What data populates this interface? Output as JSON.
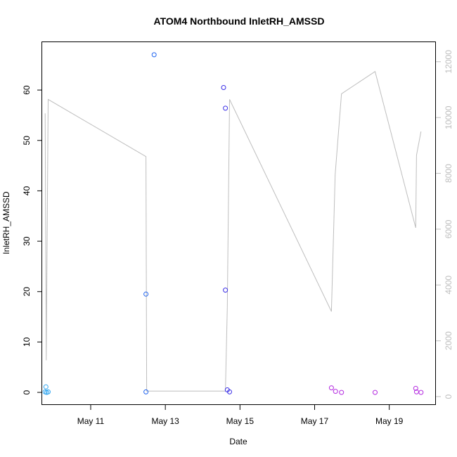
{
  "chart_data": {
    "type": "scatter",
    "title": "ATOM4 Northbound InletRH_AMSSD",
    "xlabel": "Date",
    "ylabel": "InletRH_AMSSD",
    "xlim": [
      9.7,
      20.25
    ],
    "ylim": [
      -2.5,
      69.5
    ],
    "y2lim": [
      -300,
      12700
    ],
    "x_ticks": [
      {
        "value": 11,
        "label": "May 11"
      },
      {
        "value": 13,
        "label": "May 13"
      },
      {
        "value": 15,
        "label": "May 15"
      },
      {
        "value": 17,
        "label": "May 17"
      },
      {
        "value": 19,
        "label": "May 19"
      }
    ],
    "y_ticks": [
      0,
      10,
      20,
      30,
      40,
      50,
      60
    ],
    "y2_ticks": [
      0,
      2000,
      4000,
      6000,
      8000,
      10000,
      12000
    ],
    "grid": false,
    "points": [
      {
        "x": 9.78,
        "y": 0.1,
        "color": "#33a7f0"
      },
      {
        "x": 9.8,
        "y": 1.1,
        "color": "#33a7f0"
      },
      {
        "x": 9.82,
        "y": 0.0,
        "color": "#33a7f0"
      },
      {
        "x": 9.86,
        "y": 0.1,
        "color": "#33a7f0"
      },
      {
        "x": 12.48,
        "y": 19.5,
        "color": "#1e63f0"
      },
      {
        "x": 12.48,
        "y": 0.1,
        "color": "#1e63f0"
      },
      {
        "x": 12.7,
        "y": 67.0,
        "color": "#1e63f0"
      },
      {
        "x": 14.56,
        "y": 60.5,
        "color": "#3a2ee6"
      },
      {
        "x": 14.61,
        "y": 56.4,
        "color": "#3a2ee6"
      },
      {
        "x": 14.61,
        "y": 20.3,
        "color": "#3a2ee6"
      },
      {
        "x": 14.66,
        "y": 0.5,
        "color": "#3a2ee6"
      },
      {
        "x": 14.72,
        "y": 0.1,
        "color": "#3a2ee6"
      },
      {
        "x": 17.45,
        "y": 0.9,
        "color": "#b42be0"
      },
      {
        "x": 17.56,
        "y": 0.2,
        "color": "#b42be0"
      },
      {
        "x": 17.72,
        "y": 0.0,
        "color": "#b42be0"
      },
      {
        "x": 18.62,
        "y": 0.0,
        "color": "#b42be0"
      },
      {
        "x": 19.71,
        "y": 0.8,
        "color": "#b42be0"
      },
      {
        "x": 19.73,
        "y": 0.1,
        "color": "#b42be0"
      },
      {
        "x": 19.85,
        "y": 0.0,
        "color": "#b42be0"
      }
    ],
    "secondary_series": {
      "color": "#bebebe",
      "x": [
        9.78,
        9.81,
        9.86,
        12.48,
        12.5,
        14.61,
        14.66,
        14.72,
        17.45,
        17.55,
        17.72,
        18.62,
        19.71,
        19.73,
        19.85
      ],
      "y": [
        10150,
        1300,
        10650,
        8600,
        200,
        200,
        3200,
        10650,
        3050,
        7950,
        10850,
        11650,
        6050,
        8650,
        9500
      ]
    }
  }
}
